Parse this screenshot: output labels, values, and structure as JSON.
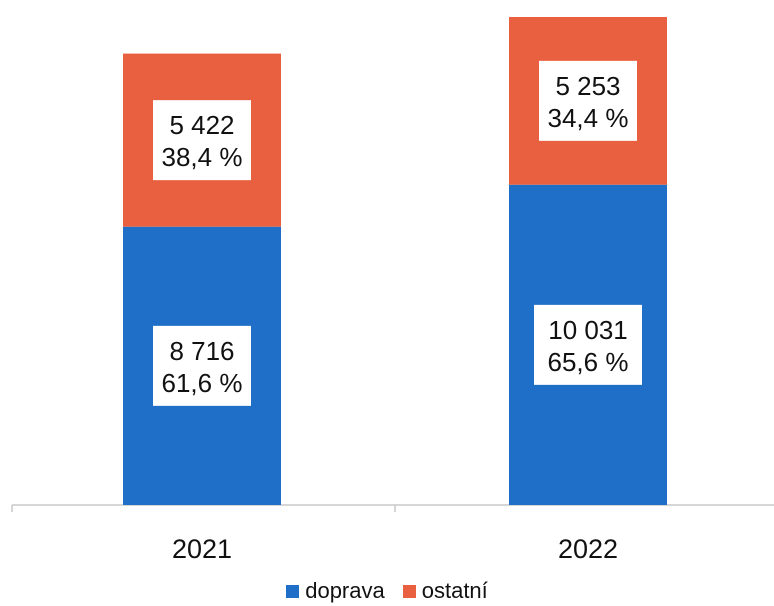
{
  "chart_data": {
    "type": "bar",
    "stacked": true,
    "categories": [
      "2021",
      "2022"
    ],
    "series": [
      {
        "name": "doprava",
        "color": "#1f6fc9",
        "values": [
          8716,
          10031
        ],
        "labels": [
          "8 716",
          "10 031"
        ],
        "percent_labels": [
          "61,6 %",
          "65,6 %"
        ]
      },
      {
        "name": "ostatní",
        "color": "#e8603f",
        "values": [
          5422,
          5253
        ],
        "labels": [
          "5 422",
          "5 253"
        ],
        "percent_labels": [
          "38,4 %",
          "34,4 %"
        ]
      }
    ],
    "legend_position": "bottom",
    "grid": false
  }
}
